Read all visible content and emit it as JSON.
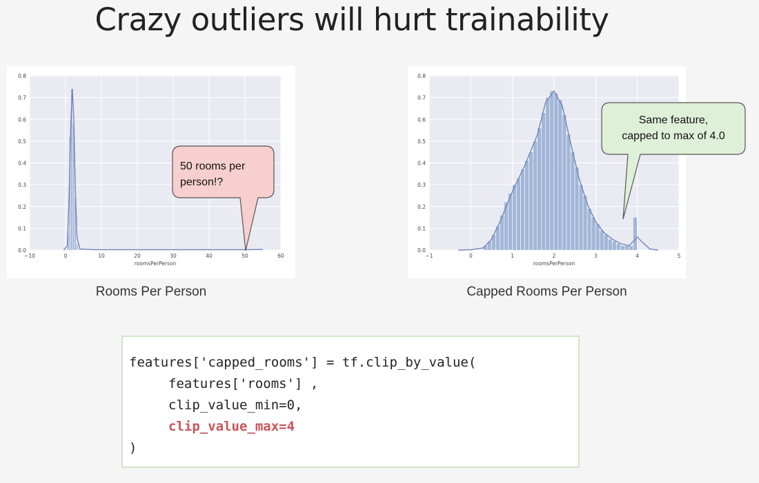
{
  "title": "Crazy outliers will hurt trainability",
  "accent_colors": {
    "bars": "#9fb4d6",
    "kde_line": "#6d86b7",
    "grid_bg": "#eaeaf2",
    "callout_red_fill": "#f7cfcf",
    "callout_green_fill": "#dff0d8",
    "code_highlight": "#c9545a"
  },
  "chart_data": [
    {
      "type": "histogram",
      "caption": "Rooms Per Person",
      "xlabel": "roomsPerPerson",
      "ylabel": "",
      "xlim": [
        -10,
        60
      ],
      "ylim": [
        0,
        0.8
      ],
      "x_ticks": [
        "−10",
        "0",
        "10",
        "20",
        "30",
        "40",
        "50",
        "60"
      ],
      "x_tick_values": [
        -10,
        0,
        10,
        20,
        30,
        40,
        50,
        60
      ],
      "y_ticks": [
        "0.0",
        "0.1",
        "0.2",
        "0.3",
        "0.4",
        "0.5",
        "0.6",
        "0.7",
        "0.8"
      ],
      "y_tick_values": [
        0,
        0.1,
        0.2,
        0.3,
        0.4,
        0.5,
        0.6,
        0.7,
        0.8
      ],
      "grid": true,
      "bins": [
        {
          "x0": 0.5,
          "x1": 1.0,
          "y": 0.08
        },
        {
          "x0": 1.0,
          "x1": 1.5,
          "y": 0.52
        },
        {
          "x0": 1.5,
          "x1": 2.0,
          "y": 0.74
        },
        {
          "x0": 2.0,
          "x1": 2.5,
          "y": 0.58
        },
        {
          "x0": 2.5,
          "x1": 3.0,
          "y": 0.24
        },
        {
          "x0": 3.0,
          "x1": 3.5,
          "y": 0.03
        }
      ],
      "kde": [
        [
          -0.5,
          0
        ],
        [
          0.5,
          0.02
        ],
        [
          1.0,
          0.25
        ],
        [
          1.5,
          0.6
        ],
        [
          1.9,
          0.74
        ],
        [
          2.3,
          0.6
        ],
        [
          2.7,
          0.3
        ],
        [
          3.2,
          0.06
        ],
        [
          4.0,
          0.005
        ],
        [
          8,
          0.002
        ],
        [
          20,
          0.002
        ],
        [
          50,
          0.002
        ],
        [
          55,
          0.003
        ]
      ],
      "callout": {
        "text": [
          "50 rooms per",
          "person!?"
        ],
        "points_to_x": 50
      }
    },
    {
      "type": "histogram",
      "caption": "Capped Rooms Per Person",
      "xlabel": "roomsPerPerson",
      "ylabel": "",
      "xlim": [
        -1,
        5
      ],
      "ylim": [
        0,
        0.8
      ],
      "x_ticks": [
        "−1",
        "0",
        "1",
        "2",
        "3",
        "4",
        "5"
      ],
      "x_tick_values": [
        -1,
        0,
        1,
        2,
        3,
        4,
        5
      ],
      "y_ticks": [
        "0.0",
        "0.1",
        "0.2",
        "0.3",
        "0.4",
        "0.5",
        "0.6",
        "0.7",
        "0.8"
      ],
      "y_tick_values": [
        0,
        0.1,
        0.2,
        0.3,
        0.4,
        0.5,
        0.6,
        0.7,
        0.8
      ],
      "grid": true,
      "bins": [
        {
          "x0": 0.3,
          "x1": 0.4,
          "y": 0.02
        },
        {
          "x0": 0.4,
          "x1": 0.5,
          "y": 0.04
        },
        {
          "x0": 0.5,
          "x1": 0.6,
          "y": 0.07
        },
        {
          "x0": 0.6,
          "x1": 0.7,
          "y": 0.11
        },
        {
          "x0": 0.7,
          "x1": 0.8,
          "y": 0.16
        },
        {
          "x0": 0.8,
          "x1": 0.9,
          "y": 0.22
        },
        {
          "x0": 0.9,
          "x1": 1.0,
          "y": 0.26
        },
        {
          "x0": 1.0,
          "x1": 1.1,
          "y": 0.3
        },
        {
          "x0": 1.1,
          "x1": 1.2,
          "y": 0.33
        },
        {
          "x0": 1.2,
          "x1": 1.3,
          "y": 0.37
        },
        {
          "x0": 1.3,
          "x1": 1.4,
          "y": 0.41
        },
        {
          "x0": 1.4,
          "x1": 1.5,
          "y": 0.45
        },
        {
          "x0": 1.5,
          "x1": 1.6,
          "y": 0.5
        },
        {
          "x0": 1.6,
          "x1": 1.7,
          "y": 0.56
        },
        {
          "x0": 1.7,
          "x1": 1.8,
          "y": 0.63
        },
        {
          "x0": 1.8,
          "x1": 1.9,
          "y": 0.7
        },
        {
          "x0": 1.9,
          "x1": 2.0,
          "y": 0.73
        },
        {
          "x0": 2.0,
          "x1": 2.1,
          "y": 0.72
        },
        {
          "x0": 2.1,
          "x1": 2.2,
          "y": 0.69
        },
        {
          "x0": 2.2,
          "x1": 2.3,
          "y": 0.62
        },
        {
          "x0": 2.3,
          "x1": 2.4,
          "y": 0.53
        },
        {
          "x0": 2.4,
          "x1": 2.5,
          "y": 0.45
        },
        {
          "x0": 2.5,
          "x1": 2.6,
          "y": 0.38
        },
        {
          "x0": 2.6,
          "x1": 2.7,
          "y": 0.3
        },
        {
          "x0": 2.7,
          "x1": 2.8,
          "y": 0.25
        },
        {
          "x0": 2.8,
          "x1": 2.9,
          "y": 0.19
        },
        {
          "x0": 2.9,
          "x1": 3.0,
          "y": 0.15
        },
        {
          "x0": 3.0,
          "x1": 3.1,
          "y": 0.12
        },
        {
          "x0": 3.1,
          "x1": 3.2,
          "y": 0.09
        },
        {
          "x0": 3.2,
          "x1": 3.3,
          "y": 0.07
        },
        {
          "x0": 3.3,
          "x1": 3.4,
          "y": 0.05
        },
        {
          "x0": 3.4,
          "x1": 3.5,
          "y": 0.04
        },
        {
          "x0": 3.5,
          "x1": 3.6,
          "y": 0.03
        },
        {
          "x0": 3.6,
          "x1": 3.7,
          "y": 0.02
        },
        {
          "x0": 3.7,
          "x1": 3.8,
          "y": 0.02
        },
        {
          "x0": 3.8,
          "x1": 3.9,
          "y": 0.02
        },
        {
          "x0": 3.9,
          "x1": 4.0,
          "y": 0.15
        }
      ],
      "kde": [
        [
          -0.3,
          0
        ],
        [
          0,
          0.002
        ],
        [
          0.3,
          0.01
        ],
        [
          0.5,
          0.05
        ],
        [
          0.7,
          0.13
        ],
        [
          1.0,
          0.27
        ],
        [
          1.3,
          0.39
        ],
        [
          1.6,
          0.53
        ],
        [
          1.8,
          0.68
        ],
        [
          2.0,
          0.73
        ],
        [
          2.2,
          0.66
        ],
        [
          2.4,
          0.49
        ],
        [
          2.6,
          0.33
        ],
        [
          2.8,
          0.21
        ],
        [
          3.0,
          0.13
        ],
        [
          3.2,
          0.08
        ],
        [
          3.4,
          0.05
        ],
        [
          3.6,
          0.03
        ],
        [
          3.8,
          0.02
        ],
        [
          3.9,
          0.04
        ],
        [
          4.0,
          0.06
        ],
        [
          4.1,
          0.04
        ],
        [
          4.3,
          0.005
        ],
        [
          4.5,
          0
        ]
      ],
      "callout": {
        "text": [
          "Same feature,",
          "capped to max of 4.0"
        ],
        "points_to_x": 3.7
      }
    }
  ],
  "code": {
    "line1": "features['capped_rooms'] = tf.clip_by_value(",
    "line2": "features['rooms'] ,",
    "line3": "clip_value_min=0,",
    "line4": "clip_value_max=4",
    "line5": ")"
  }
}
